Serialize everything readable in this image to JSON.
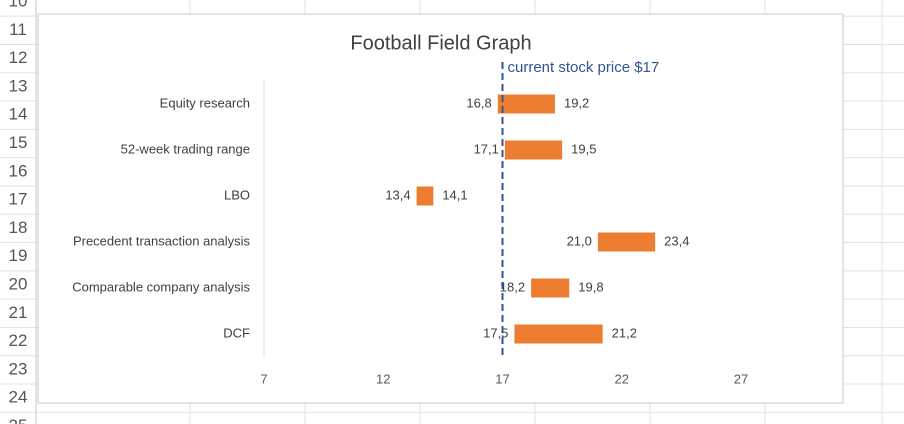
{
  "spreadsheet": {
    "row_numbers": [
      "10",
      "11",
      "12",
      "13",
      "14",
      "15",
      "16",
      "17",
      "18",
      "19",
      "20",
      "21",
      "22",
      "23",
      "24",
      "25"
    ]
  },
  "chart_data": {
    "type": "range_bar",
    "title": "Football Field Graph",
    "categories": [
      "Equity research",
      "52-week trading range",
      "LBO",
      "Precedent transaction analysis",
      "Comparable company analysis",
      "DCF"
    ],
    "values_low": [
      16.8,
      17.1,
      13.4,
      21.0,
      18.2,
      17.5
    ],
    "value_labels_low": [
      "16,8",
      "17,1",
      "13,4",
      "21,0",
      "18,2",
      "17,5"
    ],
    "values_high": [
      19.2,
      19.5,
      14.1,
      23.4,
      19.8,
      21.2
    ],
    "value_labels_high": [
      "19,2",
      "19,5",
      "14,1",
      "23,4",
      "19,8",
      "21,2"
    ],
    "color": "#ed7d31",
    "xlim": [
      7,
      27
    ],
    "xticks": [
      7,
      12,
      17,
      22,
      27
    ],
    "reference_line": {
      "value": 17,
      "label": "current stock price $17",
      "color": "#2f5597"
    }
  }
}
